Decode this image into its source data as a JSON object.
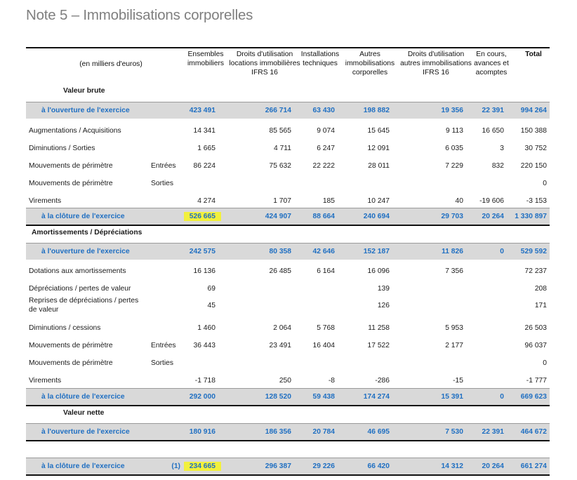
{
  "title": "Note 5 –  Immobilisations corporelles",
  "headers": {
    "unit": "(en milliers d'euros)",
    "cols": [
      "Ensembles\nimmobiliers",
      "Droits d'utilisation\nlocations immobilières\nIFRS 16",
      "Installations\ntechniques",
      "Autres\nimmobilisations\ncorporelles",
      "Droits d'utilisation\nautres immobilisations\nIFRS 16",
      "En cours,\navances et\nacomptes",
      "Total"
    ]
  },
  "sections": {
    "brute": "Valeur brute",
    "amort": "Amortissements / Dépréciations",
    "nette": "Valeur nette"
  },
  "rows": [
    {
      "label": "à l'ouverture de l'exercice",
      "sub": "",
      "vals": [
        "423 491",
        "266 714",
        "63 430",
        "198 882",
        "19 356",
        "22 391",
        "994 264"
      ]
    },
    {
      "label": "Augmentations / Acquisitions",
      "sub": "",
      "vals": [
        "14 341",
        "85 565",
        "9 074",
        "15 645",
        "9 113",
        "16 650",
        "150 388"
      ]
    },
    {
      "label": "Diminutions / Sorties",
      "sub": "",
      "vals": [
        "1 665",
        "4 711",
        "6 247",
        "12 091",
        "6 035",
        "3",
        "30 752"
      ]
    },
    {
      "label": "Mouvements de périmètre",
      "sub": "Entrées",
      "vals": [
        "86 224",
        "75 632",
        "22 222",
        "28 011",
        "7 229",
        "832",
        "220 150"
      ]
    },
    {
      "label": "Mouvements de périmètre",
      "sub": "Sorties",
      "vals": [
        "",
        "",
        "",
        "",
        "",
        "",
        "0"
      ]
    },
    {
      "label": "Virements",
      "sub": "",
      "vals": [
        "4 274",
        "1 707",
        "185",
        "10 247",
        "40",
        "-19 606",
        "-3 153"
      ]
    },
    {
      "label": "à la clôture de l'exercice",
      "sub": "",
      "vals": [
        "526 665",
        "424 907",
        "88 664",
        "240 694",
        "29 703",
        "20 264",
        "1 330 897"
      ]
    },
    {
      "label": "à l'ouverture de l'exercice",
      "sub": "",
      "vals": [
        "242 575",
        "80 358",
        "42 646",
        "152 187",
        "11 826",
        "0",
        "529 592"
      ]
    },
    {
      "label": "Dotations aux amortissements",
      "sub": "",
      "vals": [
        "16 136",
        "26 485",
        "6 164",
        "16 096",
        "7 356",
        "",
        "72 237"
      ]
    },
    {
      "label": "Dépréciations / pertes de valeur",
      "sub": "",
      "vals": [
        "69",
        "",
        "",
        "139",
        "",
        "",
        "208"
      ]
    },
    {
      "label": "Reprises de dépréciations / pertes\nde valeur",
      "sub": "",
      "vals": [
        "45",
        "",
        "",
        "126",
        "",
        "",
        "171"
      ]
    },
    {
      "label": "Diminutions / cessions",
      "sub": "",
      "vals": [
        "1 460",
        "2 064",
        "5 768",
        "11 258",
        "5 953",
        "",
        "26 503"
      ]
    },
    {
      "label": "Mouvements de périmètre",
      "sub": "Entrées",
      "vals": [
        "36 443",
        "23 491",
        "16 404",
        "17 522",
        "2 177",
        "",
        "96 037"
      ]
    },
    {
      "label": "Mouvements de périmètre",
      "sub": "Sorties",
      "vals": [
        "",
        "",
        "",
        "",
        "",
        "",
        "0"
      ]
    },
    {
      "label": "Virements",
      "sub": "",
      "vals": [
        "-1 718",
        "250",
        "-8",
        "-286",
        "-15",
        "",
        "-1 777"
      ]
    },
    {
      "label": "à la clôture de l'exercice",
      "sub": "",
      "vals": [
        "292 000",
        "128 520",
        "59 438",
        "174 274",
        "15 391",
        "0",
        "669 623"
      ]
    },
    {
      "label": "à l'ouverture de l'exercice",
      "sub": "",
      "vals": [
        "180 916",
        "186 356",
        "20 784",
        "46 695",
        "7 530",
        "22 391",
        "464 672"
      ]
    },
    {
      "label": "à la clôture de l'exercice",
      "sub": "(1)",
      "vals": [
        "234 665",
        "296 387",
        "29 226",
        "66 420",
        "14 312",
        "20 264",
        "661 274"
      ]
    }
  ],
  "highlight_color": "#f2f03c",
  "accent_color": "#1f6fc2"
}
